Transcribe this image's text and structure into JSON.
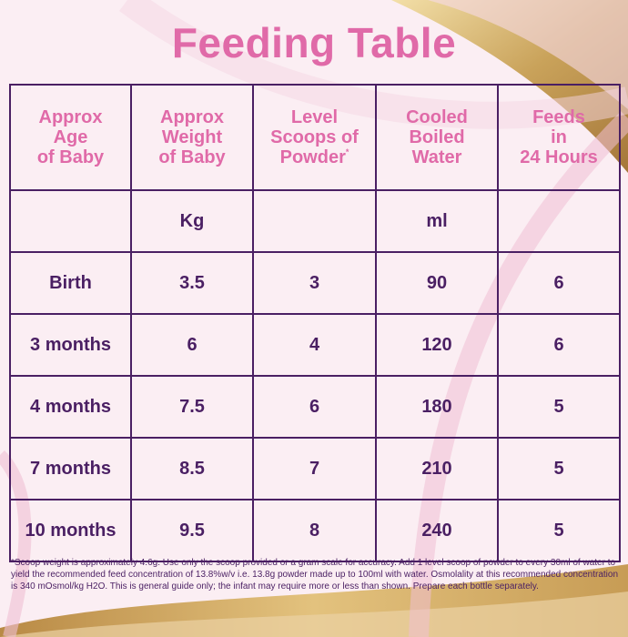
{
  "title": "Feeding Table",
  "headers": [
    {
      "lines": [
        "Approx",
        "Age",
        "of Baby"
      ],
      "sup": ""
    },
    {
      "lines": [
        "Approx",
        "Weight",
        "of Baby"
      ],
      "sup": ""
    },
    {
      "lines": [
        "Level",
        "Scoops of",
        "Powder"
      ],
      "sup": "*"
    },
    {
      "lines": [
        "Cooled",
        "Boiled",
        "Water"
      ],
      "sup": ""
    },
    {
      "lines": [
        "Feeds",
        "in",
        "24 Hours"
      ],
      "sup": ""
    }
  ],
  "units": [
    "",
    "Kg",
    "",
    "ml",
    ""
  ],
  "rows": [
    [
      "Birth",
      "3.5",
      "3",
      "90",
      "6"
    ],
    [
      "3 months",
      "6",
      "4",
      "120",
      "6"
    ],
    [
      "4 months",
      "7.5",
      "6",
      "180",
      "5"
    ],
    [
      "7 months",
      "8.5",
      "7",
      "210",
      "5"
    ],
    [
      "10 months",
      "9.5",
      "8",
      "240",
      "5"
    ]
  ],
  "footnote": "*Scoop weight is approximately 4.6g. Use only the scoop provided or a gram scale for accuracy. Add 1 level scoop of powder to every 30ml of water to yield the recommended feed concentration of 13.8%w/v i.e. 13.8g powder made up to 100ml with water. Osmolality at this recommended concentration is 340 mOsmol/kg H2O. This is general guide only; the infant may require more or less than shown. Prepare each bottle separately.",
  "colors": {
    "background": "#fbeef3",
    "title": "#e06aa8",
    "text": "#4a1f63",
    "gold": "#c9a25a"
  }
}
